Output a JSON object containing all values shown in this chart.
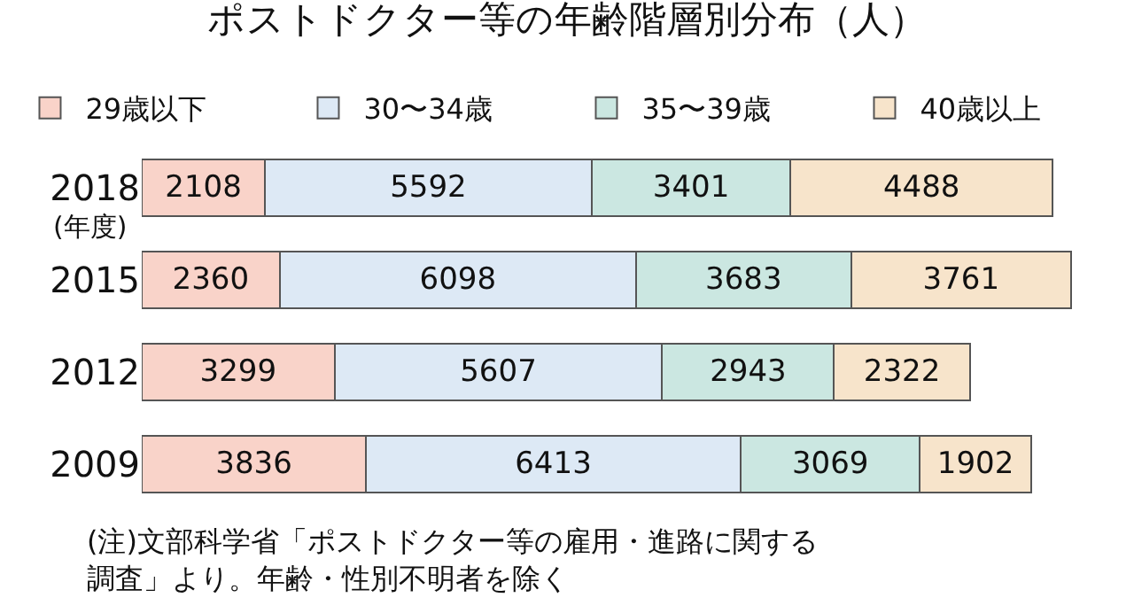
{
  "chart_data": {
    "type": "bar",
    "orientation": "horizontal",
    "stacked": true,
    "title": "ポストドクター等の年齢階層別分布（人）",
    "categories": [
      "2018",
      "2015",
      "2012",
      "2009"
    ],
    "series": [
      {
        "name": "29歳以下",
        "color": "#f9d3c9",
        "values": [
          2108,
          2360,
          3299,
          3836
        ]
      },
      {
        "name": "30〜34歳",
        "color": "#dde9f5",
        "values": [
          5592,
          6098,
          5607,
          6413
        ]
      },
      {
        "name": "35〜39歳",
        "color": "#cbe7e1",
        "values": [
          3401,
          3683,
          2943,
          3069
        ]
      },
      {
        "name": "40歳以上",
        "color": "#f7e4cb",
        "values": [
          4488,
          3761,
          2322,
          1902
        ]
      }
    ],
    "data_labels": true,
    "legend": "top",
    "tick_labels": "y",
    "annotations": [
      "(年度)",
      "(注)文部科学省「ポストドクター等の雇用・進路に関する調査」より。年齢・性別不明者を除く"
    ]
  }
}
